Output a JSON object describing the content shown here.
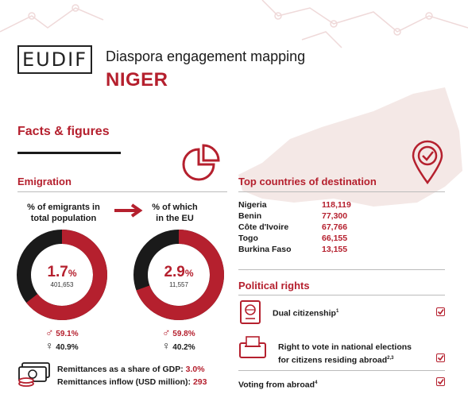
{
  "header": {
    "logo_text": "EUDIF",
    "title": "Diaspora engagement mapping",
    "country": "NIGER"
  },
  "facts_heading": "Facts & figures",
  "emigration": {
    "heading": "Emigration",
    "label_total": "% of emigrants in total population",
    "label_eu": "% of which in the EU",
    "total": {
      "pct_value": "1.7",
      "pct_sign": "%",
      "count": "401,653",
      "fraction": 0.017
    },
    "eu": {
      "pct_value": "2.9",
      "pct_sign": "%",
      "count": "11,557",
      "fraction": 0.029
    },
    "gender_total": {
      "male": "59.1%",
      "female": "40.9%"
    },
    "gender_eu": {
      "male": "59.8%",
      "female": "40.2%"
    },
    "remittances_gdp_label": "Remittances as a share of GDP:",
    "remittances_gdp_value": "3.0%",
    "remittances_inflow_label": "Remittances inflow (USD million):",
    "remittances_inflow_value": "293"
  },
  "destinations": {
    "heading": "Top countries of destination",
    "rows": [
      {
        "country": "Nigeria",
        "value": "118,119"
      },
      {
        "country": "Benin",
        "value": "77,300"
      },
      {
        "country": "Côte d'Ivoire",
        "value": "67,766"
      },
      {
        "country": "Togo",
        "value": "66,155"
      },
      {
        "country": "Burkina Faso",
        "value": "13,155"
      }
    ]
  },
  "political_rights": {
    "heading": "Political rights",
    "items": [
      {
        "label": "Dual citizenship",
        "sup": "1"
      },
      {
        "label_line1": "Right to vote in national elections",
        "label_line2": "for citizens residing abroad",
        "sup": "2,3"
      },
      {
        "label": "Voting from abroad",
        "sup": "4"
      }
    ]
  },
  "icons": {
    "pie": "pie-chart-icon",
    "pin": "location-check-icon",
    "male": "male-symbol-icon",
    "female": "female-symbol-icon",
    "money": "banknotes-icon",
    "passport": "passport-icon",
    "ballot": "ballot-box-icon",
    "check": "checkbox-checked-icon"
  },
  "colors": {
    "accent": "#b5202e",
    "dark": "#1a1a1a",
    "map": "#f4e8e6"
  }
}
